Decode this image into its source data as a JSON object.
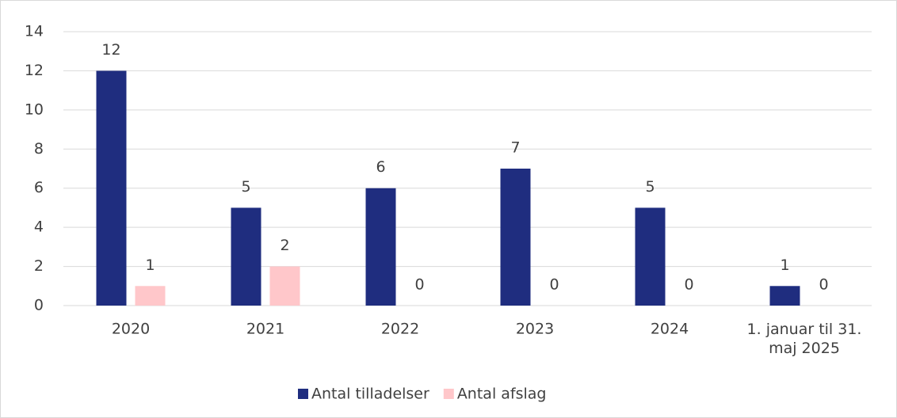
{
  "chart_data": {
    "type": "bar",
    "categories": [
      "2020",
      "2021",
      "2022",
      "2023",
      "2024",
      "1. januar til 31. maj 2025"
    ],
    "series": [
      {
        "name": "Antal tilladelser",
        "color": "#1f2d7f",
        "values": [
          12,
          5,
          6,
          7,
          5,
          1
        ]
      },
      {
        "name": "Antal afslag",
        "color": "#ffc7ca",
        "values": [
          1,
          2,
          0,
          0,
          0,
          0
        ]
      }
    ],
    "ylim": [
      0,
      14
    ],
    "yticks": [
      0,
      2,
      4,
      6,
      8,
      10,
      12,
      14
    ],
    "grid": true,
    "legend": "bottom"
  }
}
